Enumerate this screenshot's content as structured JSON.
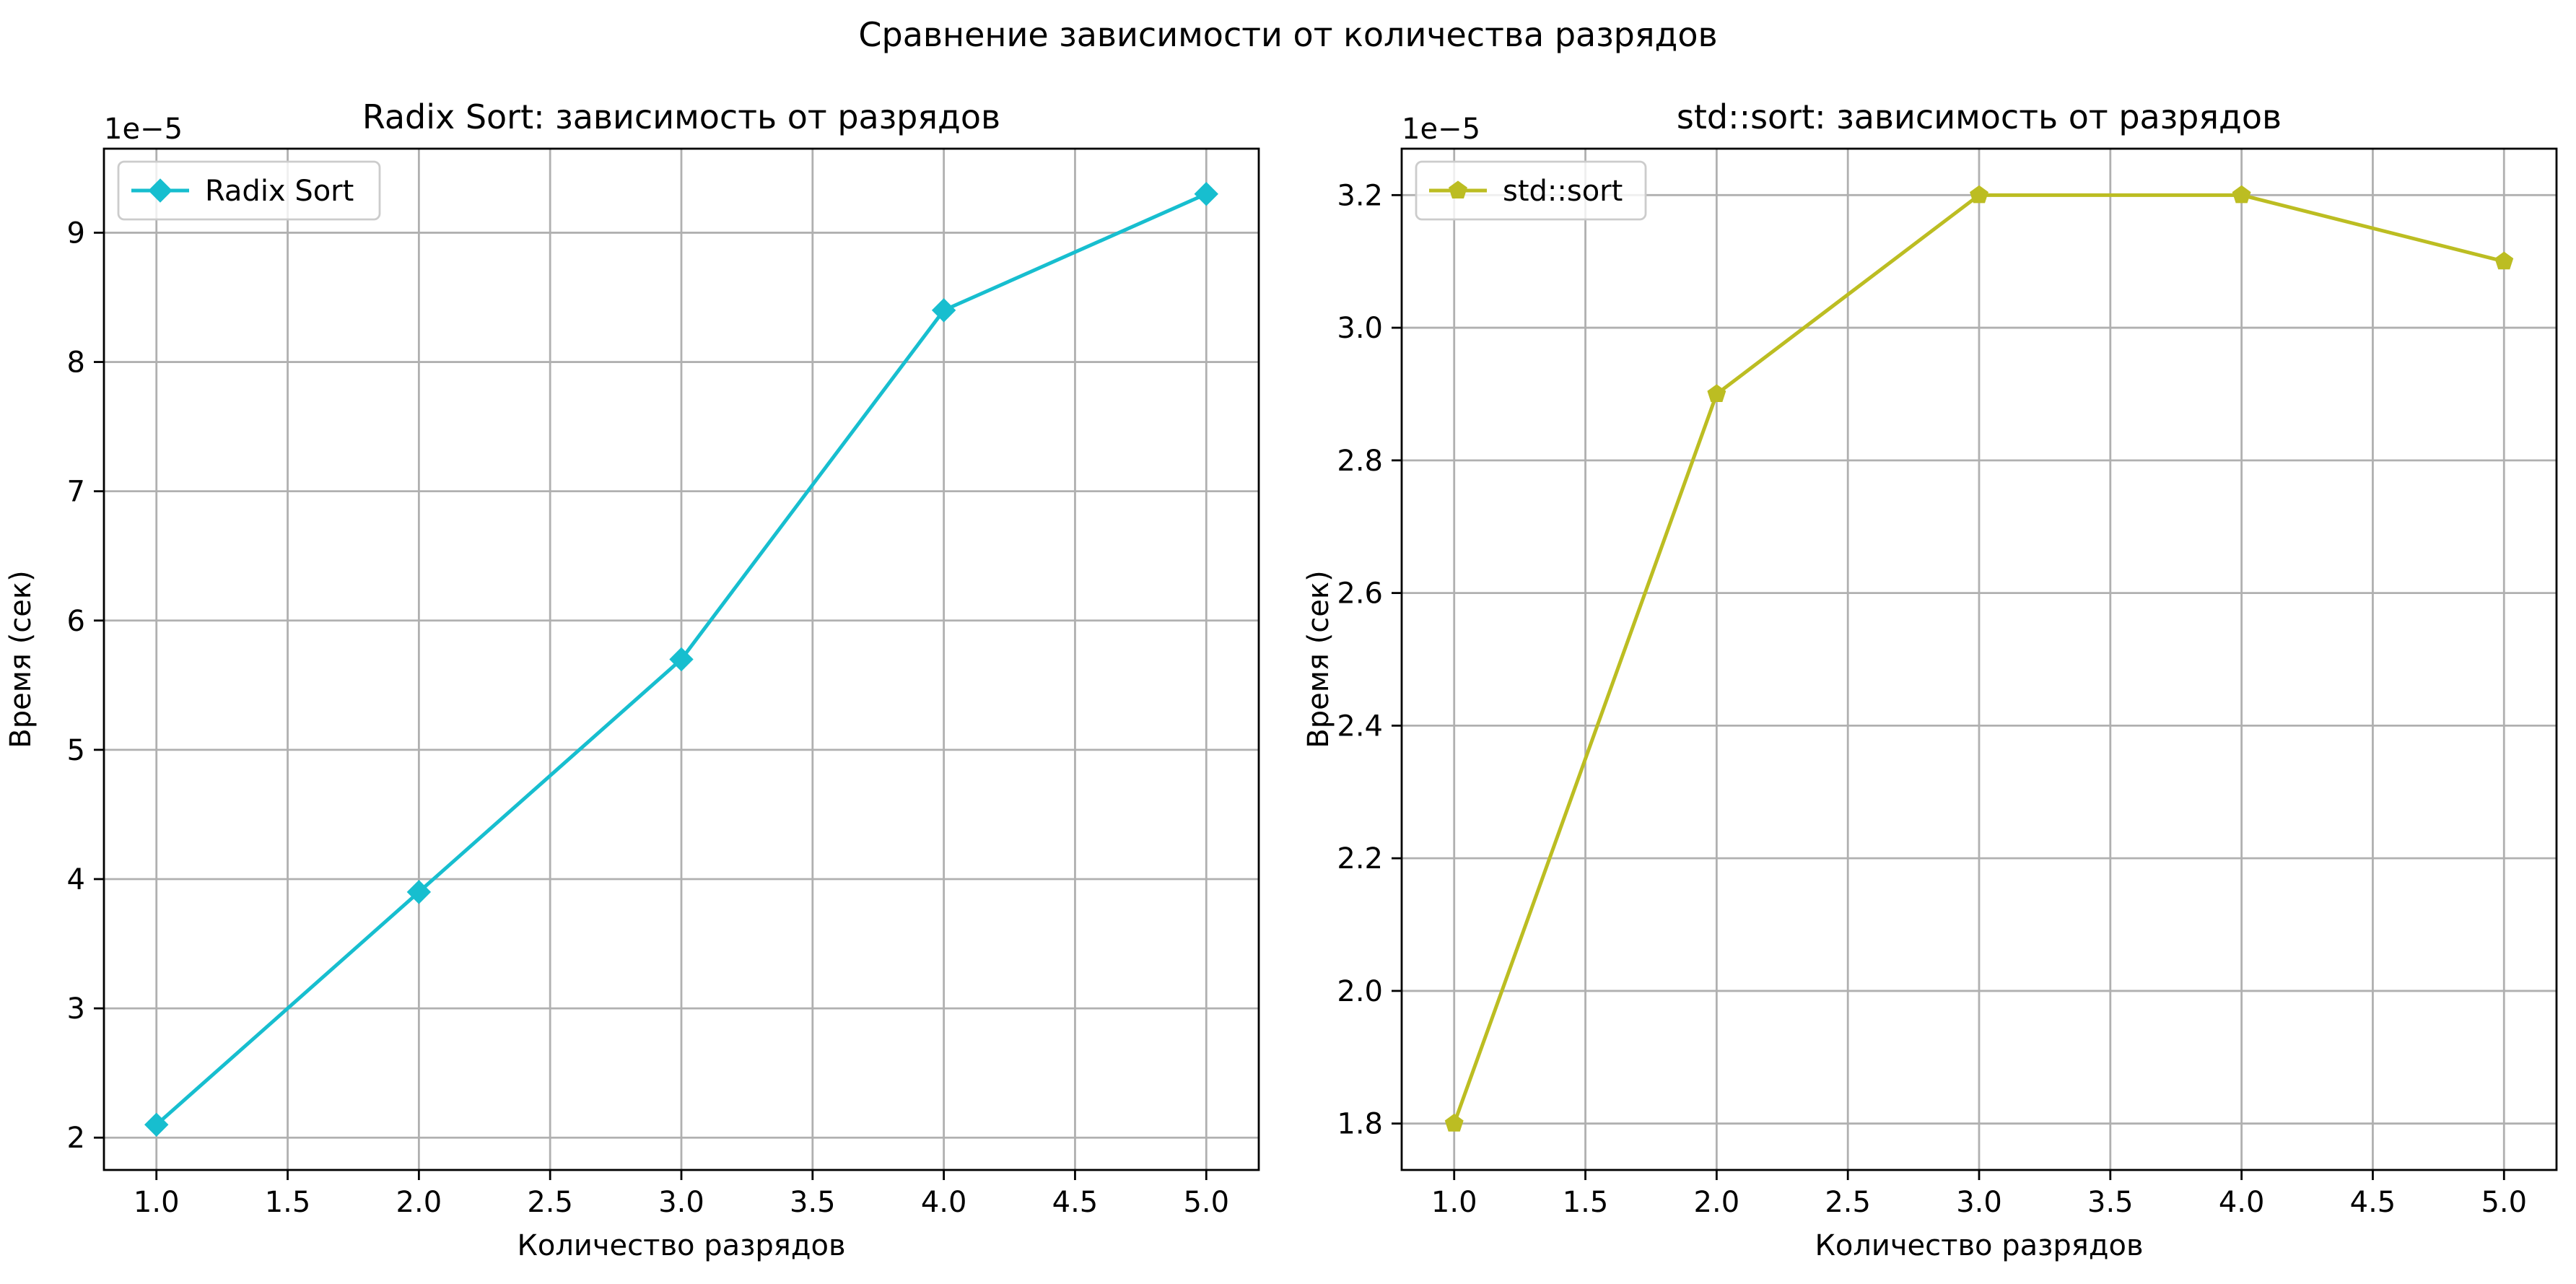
{
  "figure": {
    "suptitle": "Сравнение зависимости от количества разрядов"
  },
  "chart_data": [
    {
      "type": "line",
      "title": "Radix Sort: зависимость от разрядов",
      "xlabel": "Количество разрядов",
      "ylabel": "Время (сек)",
      "y_offset_label": "1e−5",
      "x": [
        1,
        2,
        3,
        4,
        5
      ],
      "xlim": [
        0.8,
        5.2
      ],
      "ylim": [
        1.75e-05,
        9.65e-05
      ],
      "xticks": [
        1.0,
        1.5,
        2.0,
        2.5,
        3.0,
        3.5,
        4.0,
        4.5,
        5.0
      ],
      "xtick_labels": [
        "1.0",
        "1.5",
        "2.0",
        "2.5",
        "3.0",
        "3.5",
        "4.0",
        "4.5",
        "5.0"
      ],
      "yticks": [
        2e-05,
        3e-05,
        4e-05,
        5e-05,
        6e-05,
        7e-05,
        8e-05,
        9e-05
      ],
      "ytick_labels": [
        "2",
        "3",
        "4",
        "5",
        "6",
        "7",
        "8",
        "9"
      ],
      "grid": true,
      "legend_position": "upper-left",
      "series": [
        {
          "name": "Radix Sort",
          "values": [
            2.1e-05,
            3.9e-05,
            5.7e-05,
            8.4e-05,
            9.3e-05
          ],
          "color": "#17becf",
          "marker": "diamond"
        }
      ]
    },
    {
      "type": "line",
      "title": "std::sort: зависимость от разрядов",
      "xlabel": "Количество разрядов",
      "ylabel": "Время (сек)",
      "y_offset_label": "1e−5",
      "x": [
        1,
        2,
        3,
        4,
        5
      ],
      "xlim": [
        0.8,
        5.2
      ],
      "ylim": [
        1.73e-05,
        3.27e-05
      ],
      "xticks": [
        1.0,
        1.5,
        2.0,
        2.5,
        3.0,
        3.5,
        4.0,
        4.5,
        5.0
      ],
      "xtick_labels": [
        "1.0",
        "1.5",
        "2.0",
        "2.5",
        "3.0",
        "3.5",
        "4.0",
        "4.5",
        "5.0"
      ],
      "yticks": [
        1.8e-05,
        2e-05,
        2.2e-05,
        2.4e-05,
        2.6e-05,
        2.8e-05,
        3e-05,
        3.2e-05
      ],
      "ytick_labels": [
        "1.8",
        "2.0",
        "2.2",
        "2.4",
        "2.6",
        "2.8",
        "3.0",
        "3.2"
      ],
      "grid": true,
      "legend_position": "upper-left",
      "series": [
        {
          "name": "std::sort",
          "values": [
            1.8e-05,
            2.9e-05,
            3.2e-05,
            3.2e-05,
            3.1e-05
          ],
          "color": "#bcbd22",
          "marker": "pentagon"
        }
      ]
    }
  ]
}
